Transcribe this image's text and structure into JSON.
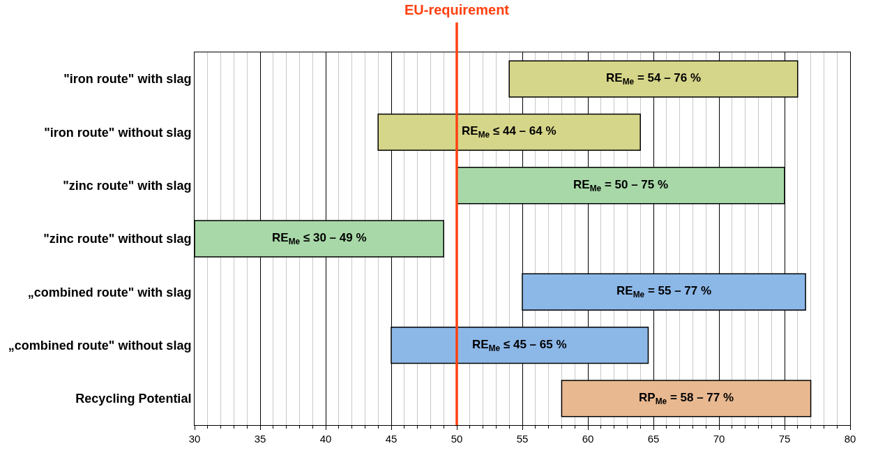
{
  "chart_data": {
    "type": "bar",
    "orientation": "horizontal",
    "categories": [
      "\"iron route\" with slag",
      "\"iron route\" without slag",
      "\"zinc route\" with slag",
      "\"zinc route\" without slag",
      "„combined route\" with slag",
      "„combined route\" without slag",
      "Recycling Potential"
    ],
    "base": [
      54,
      44,
      50,
      30,
      55,
      45,
      58
    ],
    "values": [
      22,
      20,
      25,
      19,
      21.6,
      19.6,
      19
    ],
    "colors": [
      "#d6d68a",
      "#d6d68a",
      "#a8d8a8",
      "#a8d8a8",
      "#8cb8e8",
      "#8cb8e8",
      "#e8b890"
    ],
    "annotations": [
      "RE$_{Me}$ = 54 – 76 %",
      "RE$_{Me}$ ≤ 44 – 64 %",
      "RE$_{Me}$ = 50 – 75 %",
      "RE$_{Me}$ ≤ 30 – 49 %",
      "RE$_{Me}$ = 55 – 77 %",
      "RE$_{Me}$ ≤ 45 – 65 %",
      "RP$_{Me}$ = 58 – 77 %"
    ],
    "xlim": [
      30,
      80
    ],
    "xticks": [
      30,
      35,
      40,
      45,
      50,
      55,
      60,
      65,
      70,
      75,
      80
    ],
    "grid": "x",
    "ref_lines": [
      {
        "axis": "x",
        "value": 50,
        "label": "EU-requirement",
        "color": "#ff4010"
      }
    ]
  }
}
